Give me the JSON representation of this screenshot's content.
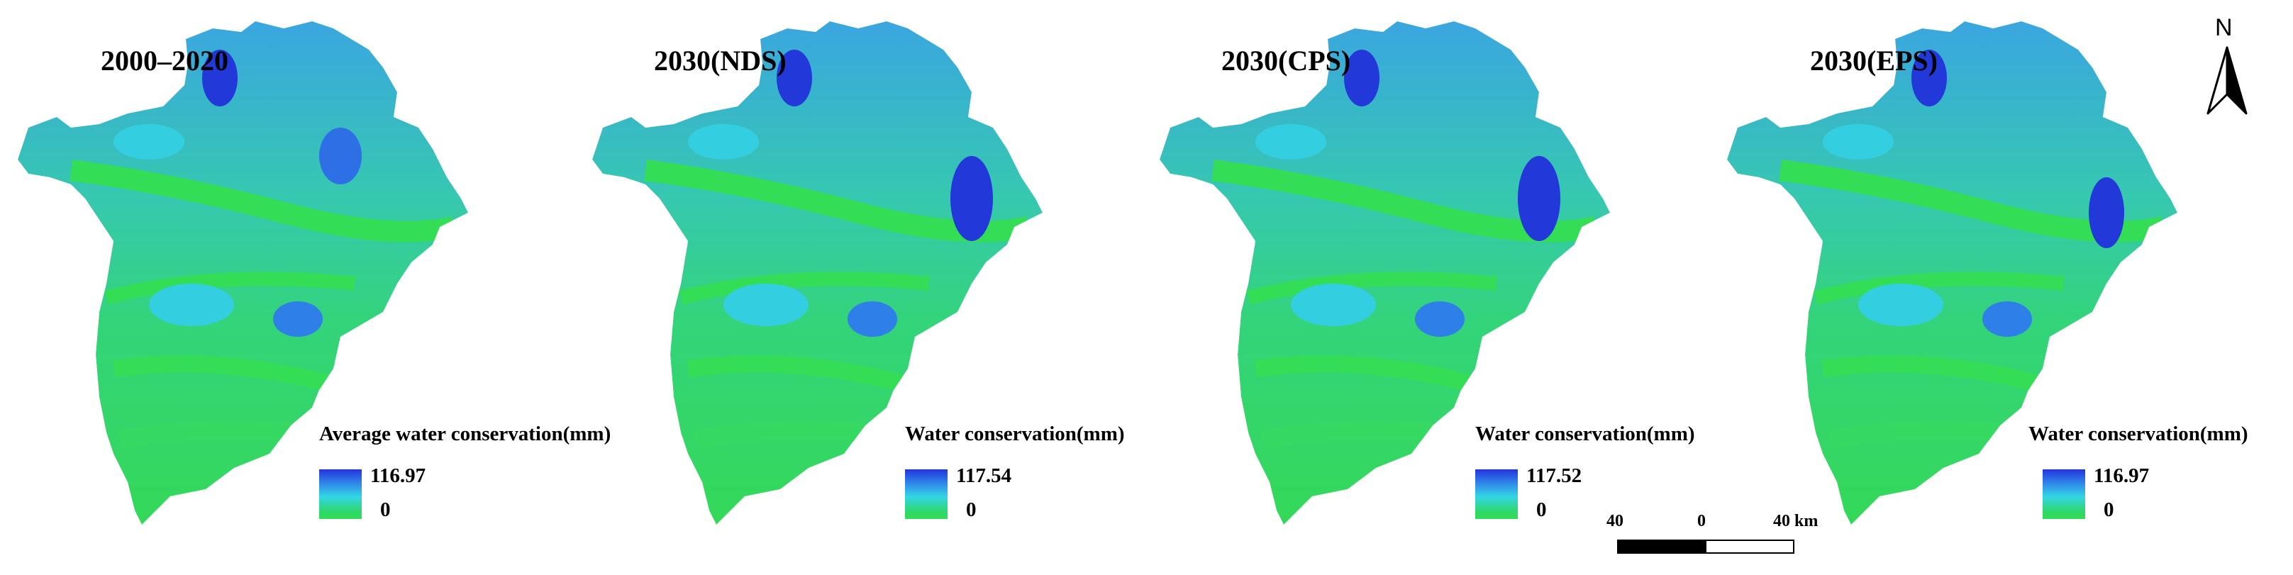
{
  "panels": [
    {
      "title": "2000–2020",
      "legend_title": "Average water conservation(mm)",
      "legend_max": "116.97",
      "legend_min": "0"
    },
    {
      "title": "2030(NDS)",
      "legend_title": "Water conservation(mm)",
      "legend_max": "117.54",
      "legend_min": "0"
    },
    {
      "title": "2030(CPS)",
      "legend_title": "Water conservation(mm)",
      "legend_max": "117.52",
      "legend_min": "0"
    },
    {
      "title": "2030(EPS)",
      "legend_title": "Water conservation(mm)",
      "legend_max": "116.97",
      "legend_min": "0"
    }
  ],
  "scale_bar": {
    "left_label": "40",
    "center_label": "0",
    "right_label": "40 km"
  },
  "north_arrow": {
    "label": "N"
  },
  "colors": {
    "low": "#33dd55",
    "mid": "#33d6e6",
    "high": "#2233dd",
    "mid_blue": "#2f7fe8"
  }
}
